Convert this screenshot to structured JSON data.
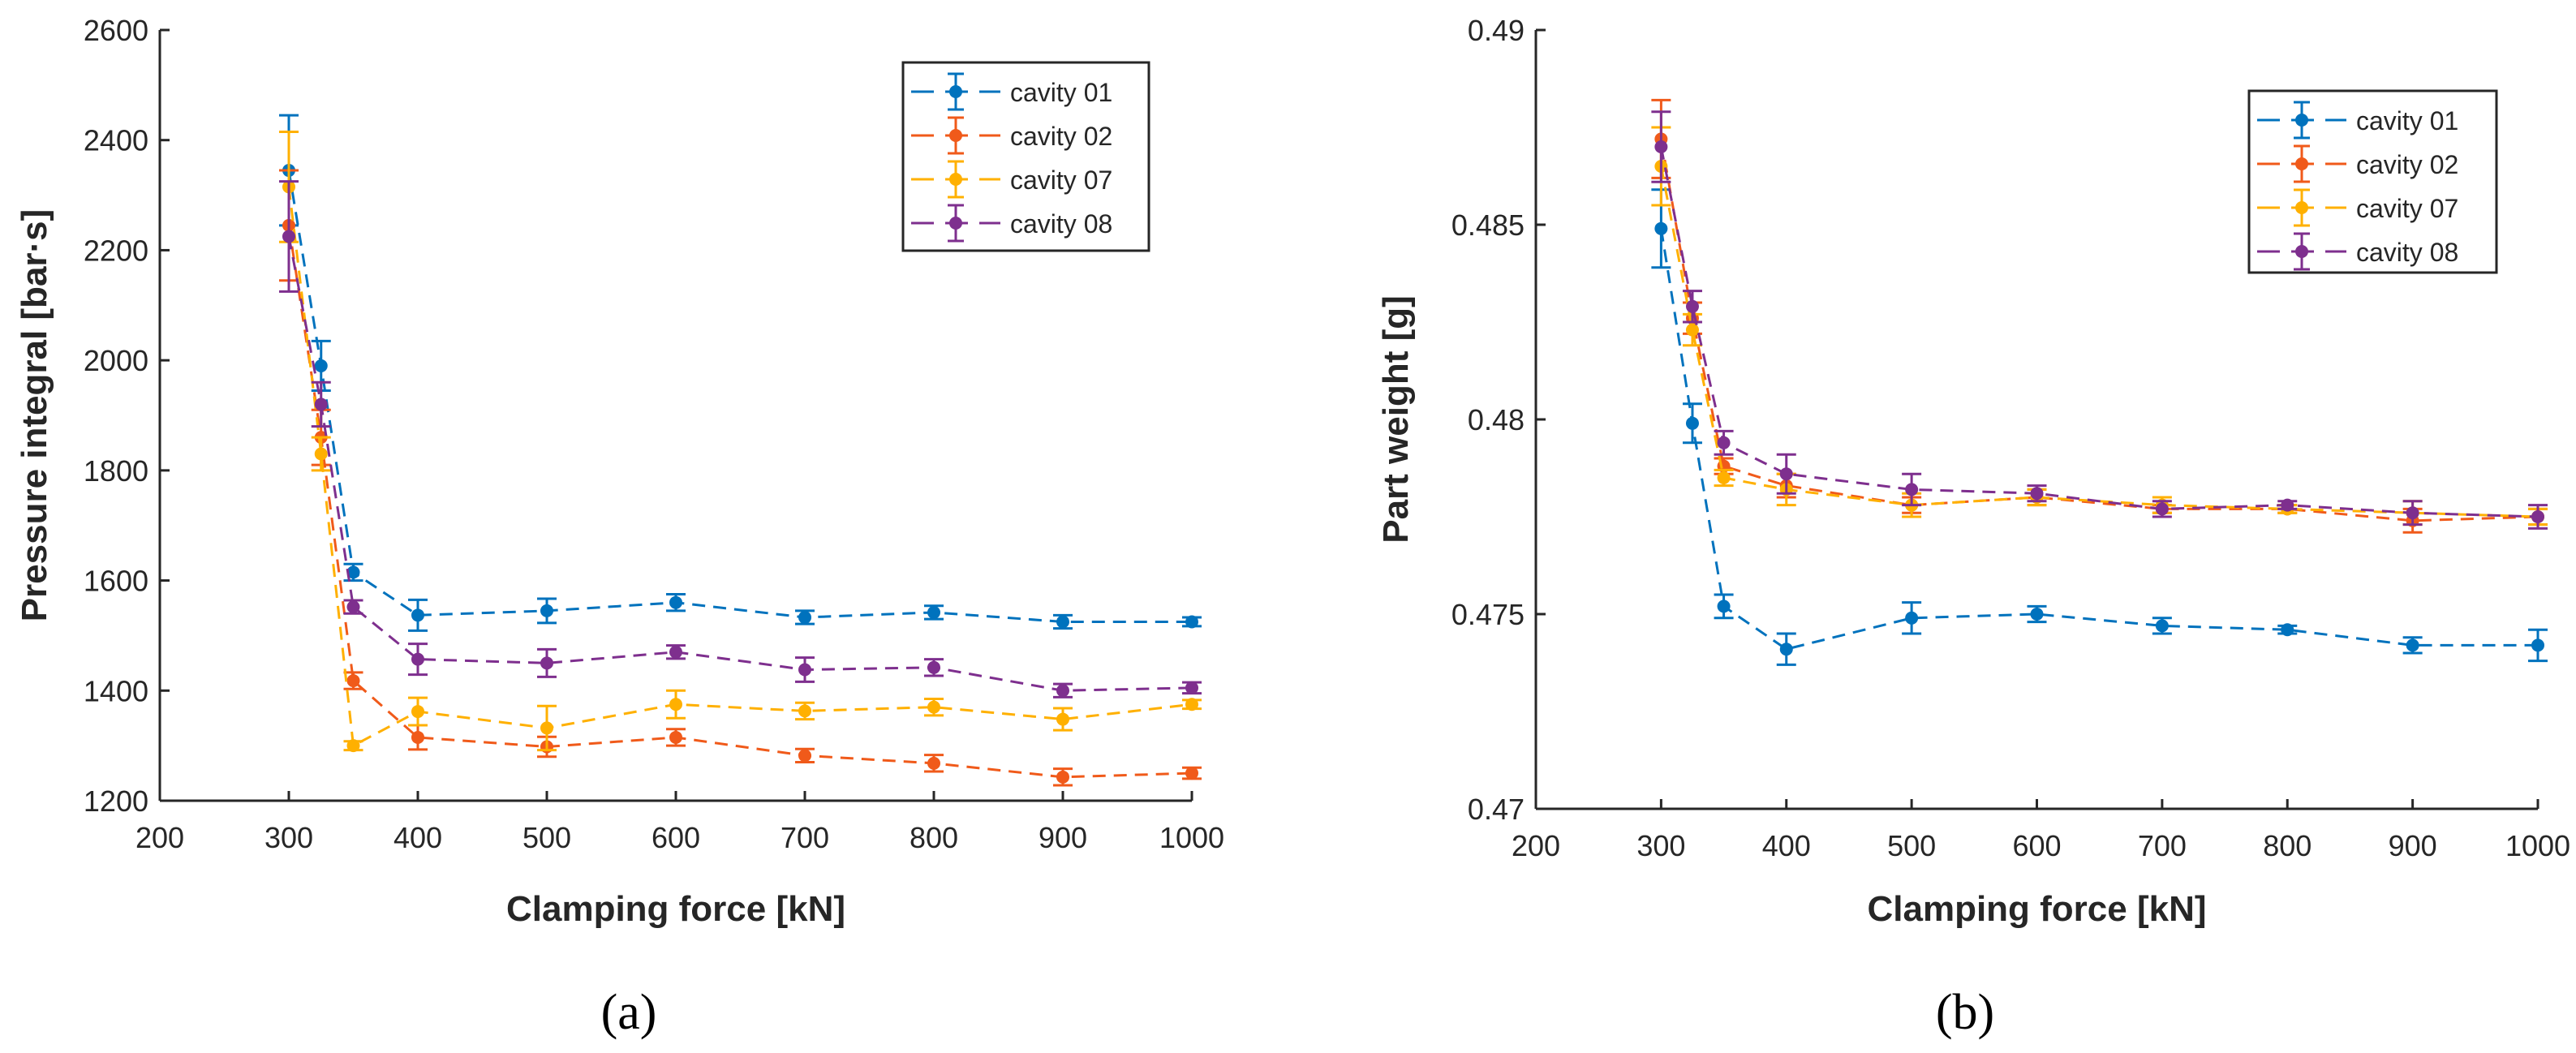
{
  "chart_data": [
    {
      "type": "line",
      "panel_label": "(a)",
      "title": "",
      "xlabel": "Clamping force [kN]",
      "ylabel": "Pressure integral [bar·s]",
      "xlim": [
        200,
        1000
      ],
      "ylim": [
        1200,
        2600
      ],
      "xticks": [
        200,
        300,
        400,
        500,
        600,
        700,
        800,
        900,
        1000
      ],
      "yticks": [
        1200,
        1400,
        1600,
        1800,
        2000,
        2200,
        2400,
        2600
      ],
      "grid": false,
      "legend_position": "top-right",
      "x": [
        300,
        325,
        350,
        400,
        500,
        600,
        700,
        800,
        900,
        1000
      ],
      "series": [
        {
          "name": "cavity 01",
          "color": "#0072BD",
          "values": [
            2345,
            1990,
            1615,
            1537,
            1545,
            1560,
            1533,
            1542,
            1525,
            1525
          ],
          "errors": [
            100,
            45,
            15,
            28,
            22,
            15,
            12,
            12,
            12,
            8
          ]
        },
        {
          "name": "cavity 02",
          "color": "#F05A1A",
          "values": [
            2245,
            1860,
            1418,
            1315,
            1298,
            1315,
            1282,
            1268,
            1243,
            1250
          ],
          "errors": [
            100,
            50,
            15,
            22,
            18,
            15,
            12,
            15,
            15,
            10
          ]
        },
        {
          "name": "cavity 07",
          "color": "#FFB000",
          "values": [
            2315,
            1830,
            1300,
            1362,
            1332,
            1375,
            1363,
            1370,
            1348,
            1375
          ],
          "errors": [
            100,
            30,
            8,
            25,
            40,
            25,
            15,
            15,
            20,
            8
          ]
        },
        {
          "name": "cavity 08",
          "color": "#7E2F8E",
          "values": [
            2225,
            1920,
            1552,
            1457,
            1450,
            1470,
            1438,
            1442,
            1400,
            1405
          ],
          "errors": [
            100,
            40,
            12,
            28,
            25,
            12,
            22,
            15,
            12,
            10
          ]
        }
      ]
    },
    {
      "type": "line",
      "panel_label": "(b)",
      "title": "",
      "xlabel": "Clamping force [kN]",
      "ylabel": "Part weight [g]",
      "xlim": [
        200,
        1000
      ],
      "ylim": [
        0.47,
        0.49
      ],
      "xticks": [
        200,
        300,
        400,
        500,
        600,
        700,
        800,
        900,
        1000
      ],
      "yticks": [
        0.47,
        0.475,
        0.48,
        0.485,
        0.49
      ],
      "grid": false,
      "legend_position": "top-right",
      "x": [
        300,
        325,
        350,
        400,
        500,
        600,
        700,
        800,
        900,
        1000
      ],
      "series": [
        {
          "name": "cavity 01",
          "color": "#0072BD",
          "values": [
            0.4849,
            0.4799,
            0.4752,
            0.4741,
            0.4749,
            0.475,
            0.4747,
            0.4746,
            0.4742,
            0.4742
          ],
          "errors": [
            0.001,
            0.0005,
            0.0003,
            0.0004,
            0.0004,
            0.0002,
            0.0002,
            0.0001,
            0.0002,
            0.0004
          ]
        },
        {
          "name": "cavity 02",
          "color": "#F05A1A",
          "values": [
            0.4872,
            0.4826,
            0.4788,
            0.4783,
            0.4778,
            0.478,
            0.4777,
            0.4777,
            0.4774,
            0.4775
          ],
          "errors": [
            0.001,
            0.0004,
            0.0002,
            0.0003,
            0.0002,
            0.0002,
            0.0001,
            0.0001,
            0.0003,
            0.0002
          ]
        },
        {
          "name": "cavity 07",
          "color": "#FFB000",
          "values": [
            0.4865,
            0.4823,
            0.4785,
            0.4782,
            0.4778,
            0.478,
            0.4778,
            0.4777,
            0.4776,
            0.4775
          ],
          "errors": [
            0.001,
            0.0004,
            0.0002,
            0.0004,
            0.0003,
            0.0002,
            0.0002,
            0.0001,
            0.0003,
            0.0002
          ]
        },
        {
          "name": "cavity 08",
          "color": "#7E2F8E",
          "values": [
            0.487,
            0.4829,
            0.4794,
            0.4786,
            0.4782,
            0.4781,
            0.4777,
            0.4778,
            0.4776,
            0.4775
          ],
          "errors": [
            0.0009,
            0.0004,
            0.0003,
            0.0005,
            0.0004,
            0.0002,
            0.0002,
            0.0001,
            0.0003,
            0.0003
          ]
        }
      ]
    }
  ]
}
